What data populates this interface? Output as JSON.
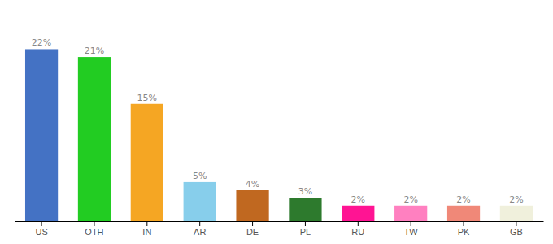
{
  "chart_data": {
    "type": "bar",
    "categories": [
      "US",
      "OTH",
      "IN",
      "AR",
      "DE",
      "PL",
      "RU",
      "TW",
      "PK",
      "GB"
    ],
    "values": [
      22,
      21,
      15,
      5,
      4,
      3,
      2,
      2,
      2,
      2
    ],
    "value_labels": [
      "22%",
      "21%",
      "15%",
      "5%",
      "4%",
      "3%",
      "2%",
      "2%",
      "2%",
      "2%"
    ],
    "colors": [
      "#4472c4",
      "#22cc22",
      "#f5a623",
      "#87ceeb",
      "#c06820",
      "#2d7a2d",
      "#ff1493",
      "#ff80c0",
      "#f08878",
      "#f0f0dc"
    ],
    "ylim": [
      0,
      26
    ],
    "grid": false,
    "data_labels": true,
    "tick_labels": "x"
  }
}
